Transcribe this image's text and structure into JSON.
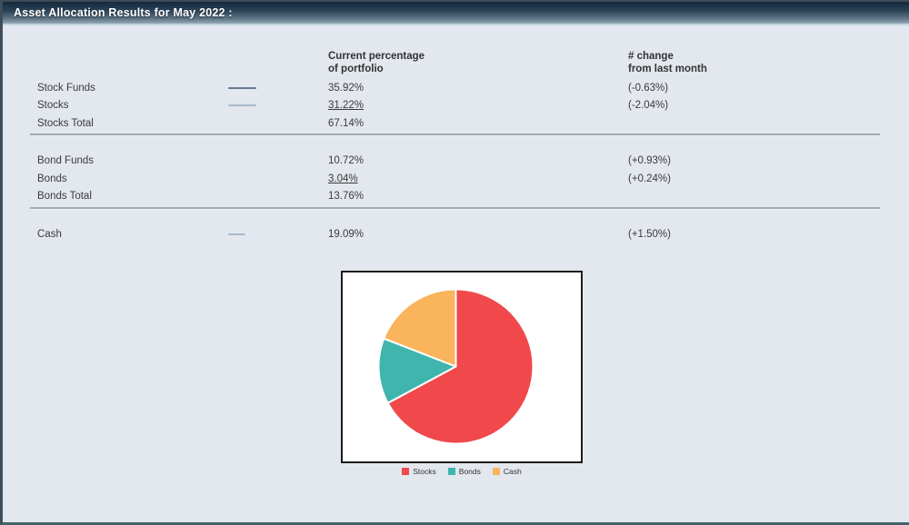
{
  "header": {
    "title": "Asset Allocation Results for May 2022 :"
  },
  "table": {
    "columns": {
      "current_line1": "Current percentage",
      "current_line2": "of portfolio",
      "change_line1": "# change",
      "change_line2": "from last month"
    },
    "rows": [
      {
        "label": "Stock Funds",
        "value": "35.92%",
        "change": "(-0.63%)"
      },
      {
        "label": "Stocks",
        "value": "31.22%",
        "change": "(-2.04%)"
      },
      {
        "label": "Stocks Total",
        "value": "67.14%",
        "change": ""
      },
      {
        "label": "Bond Funds",
        "value": "10.72%",
        "change": "(+0.93%)"
      },
      {
        "label": "Bonds",
        "value": "3.04%",
        "change": "(+0.24%)"
      },
      {
        "label": "Bonds Total",
        "value": "13.76%",
        "change": ""
      },
      {
        "label": "Cash",
        "value": "19.09%",
        "change": "(+1.50%)"
      }
    ]
  },
  "indicators": {
    "stock_funds_color": "#67798e",
    "stocks_color": "#a7bacd",
    "cash_color": "#a7bacd"
  },
  "chart_data": {
    "type": "pie",
    "categories": [
      "Stocks",
      "Bonds",
      "Cash"
    ],
    "values": [
      67.14,
      13.76,
      19.09
    ],
    "colors": [
      "#f0484b",
      "#3fb5ae",
      "#f9b45c"
    ],
    "title": "",
    "legend_position": "bottom",
    "units": "percent of portfolio"
  }
}
